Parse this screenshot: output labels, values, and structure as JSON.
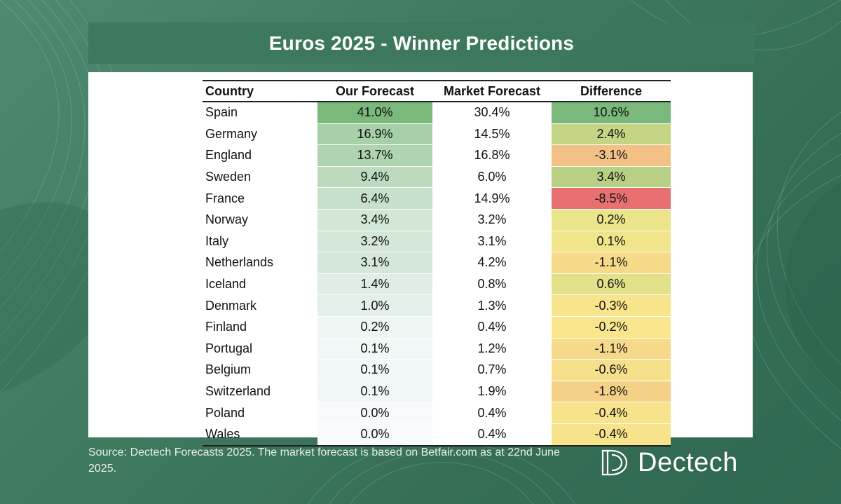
{
  "title": "Euros 2025 - Winner Predictions",
  "source_note": "Source: Dectech Forecasts 2025. The market forecast is based on Betfair.com as at 22nd June 2025.",
  "logo_text": "Dectech",
  "colors": {
    "green_strong": "#7ab97b",
    "yellow": "#f8e88c",
    "red": "#e87070",
    "orange": "#f3bd85",
    "background": "#3f7a5f"
  },
  "chart_data": {
    "type": "table",
    "title": "Euros 2025 - Winner Predictions",
    "columns": [
      "Country",
      "Our Forecast",
      "Market Forecast",
      "Difference"
    ],
    "rows": [
      {
        "country": "Spain",
        "ours": "41.0%",
        "market": "30.4%",
        "diff": "10.6%",
        "ours_v": 41.0,
        "diff_v": 10.6
      },
      {
        "country": "Germany",
        "ours": "16.9%",
        "market": "14.5%",
        "diff": "2.4%",
        "ours_v": 16.9,
        "diff_v": 2.4
      },
      {
        "country": "England",
        "ours": "13.7%",
        "market": "16.8%",
        "diff": "-3.1%",
        "ours_v": 13.7,
        "diff_v": -3.1
      },
      {
        "country": "Sweden",
        "ours": "9.4%",
        "market": "6.0%",
        "diff": "3.4%",
        "ours_v": 9.4,
        "diff_v": 3.4
      },
      {
        "country": "France",
        "ours": "6.4%",
        "market": "14.9%",
        "diff": "-8.5%",
        "ours_v": 6.4,
        "diff_v": -8.5
      },
      {
        "country": "Norway",
        "ours": "3.4%",
        "market": "3.2%",
        "diff": "0.2%",
        "ours_v": 3.4,
        "diff_v": 0.2
      },
      {
        "country": "Italy",
        "ours": "3.2%",
        "market": "3.1%",
        "diff": "0.1%",
        "ours_v": 3.2,
        "diff_v": 0.1
      },
      {
        "country": "Netherlands",
        "ours": "3.1%",
        "market": "4.2%",
        "diff": "-1.1%",
        "ours_v": 3.1,
        "diff_v": -1.1
      },
      {
        "country": "Iceland",
        "ours": "1.4%",
        "market": "0.8%",
        "diff": "0.6%",
        "ours_v": 1.4,
        "diff_v": 0.6
      },
      {
        "country": "Denmark",
        "ours": "1.0%",
        "market": "1.3%",
        "diff": "-0.3%",
        "ours_v": 1.0,
        "diff_v": -0.3
      },
      {
        "country": "Finland",
        "ours": "0.2%",
        "market": "0.4%",
        "diff": "-0.2%",
        "ours_v": 0.2,
        "diff_v": -0.2
      },
      {
        "country": "Portugal",
        "ours": "0.1%",
        "market": "1.2%",
        "diff": "-1.1%",
        "ours_v": 0.1,
        "diff_v": -1.1
      },
      {
        "country": "Belgium",
        "ours": "0.1%",
        "market": "0.7%",
        "diff": "-0.6%",
        "ours_v": 0.1,
        "diff_v": -0.6
      },
      {
        "country": "Switzerland",
        "ours": "0.1%",
        "market": "1.9%",
        "diff": "-1.8%",
        "ours_v": 0.1,
        "diff_v": -1.8
      },
      {
        "country": "Poland",
        "ours": "0.0%",
        "market": "0.4%",
        "diff": "-0.4%",
        "ours_v": 0.0,
        "diff_v": -0.4
      },
      {
        "country": "Wales",
        "ours": "0.0%",
        "market": "0.4%",
        "diff": "-0.4%",
        "ours_v": 0.0,
        "diff_v": -0.4
      }
    ]
  }
}
